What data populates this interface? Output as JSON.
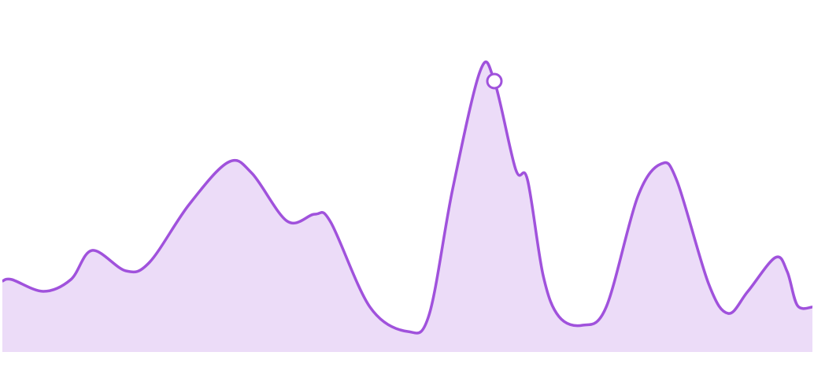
{
  "chart_data": {
    "type": "area",
    "x": [
      3,
      15,
      55,
      90,
      117,
      160,
      190,
      240,
      290,
      320,
      365,
      400,
      420,
      470,
      518,
      545,
      575,
      610,
      628,
      655,
      670,
      690,
      710,
      740,
      770,
      810,
      840,
      860,
      900,
      925,
      950,
      985,
      1000,
      1013,
      1032
    ],
    "series": [
      {
        "color": "#a052dc",
        "fill": "#ecdcf8",
        "values": [
          22.5,
          23,
          19.25,
          23,
          32.25,
          25.75,
          28.5,
          46.75,
          60.25,
          56.75,
          41.5,
          43.75,
          41.25,
          14.25,
          6.5,
          11.75,
          51.75,
          89.25,
          86,
          58,
          54.75,
          24.25,
          11.25,
          8.5,
          14.25,
          49.25,
          59.75,
          54.25,
          21.75,
          12.25,
          19.25,
          30,
          25.5,
          14.75,
          14.25
        ]
      }
    ],
    "highlight_index": 18,
    "xlim": [
      3,
      1032
    ],
    "ylim": [
      0,
      100
    ]
  }
}
